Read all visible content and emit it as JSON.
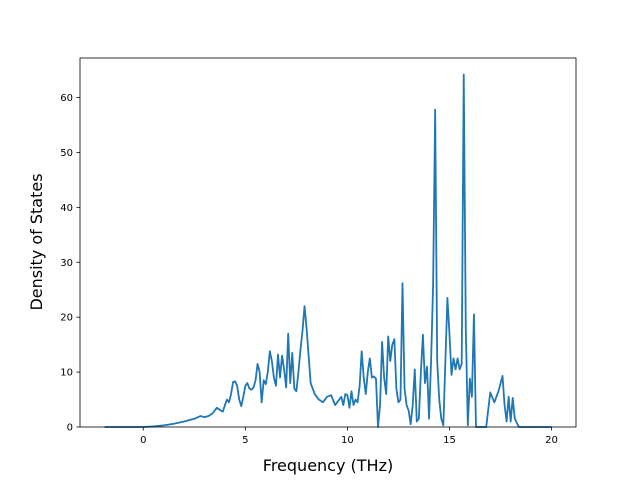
{
  "chart_data": {
    "type": "line",
    "title": "",
    "xlabel": "Frequency (THz)",
    "ylabel": "Density of States",
    "xlim": [
      -3.1,
      21.2
    ],
    "ylim": [
      0,
      67.2
    ],
    "xticks": [
      0,
      5,
      10,
      15,
      20
    ],
    "yticks": [
      0,
      10,
      20,
      30,
      40,
      50,
      60
    ],
    "grid": false,
    "line_color": "#1f77b4",
    "series": [
      {
        "x": [
          -1.9,
          0.0,
          0.5,
          1.0,
          1.5,
          2.0,
          2.5,
          2.8,
          3.0,
          3.2,
          3.4,
          3.6,
          3.8,
          3.9,
          4.0,
          4.1,
          4.2,
          4.3,
          4.4,
          4.5,
          4.6,
          4.7,
          4.8,
          4.9,
          5.0,
          5.1,
          5.2,
          5.3,
          5.4,
          5.5,
          5.6,
          5.7,
          5.8,
          5.9,
          6.0,
          6.1,
          6.2,
          6.3,
          6.4,
          6.5,
          6.6,
          6.7,
          6.8,
          6.9,
          7.0,
          7.1,
          7.2,
          7.3,
          7.4,
          7.5,
          7.6,
          7.7,
          7.8,
          7.9,
          8.0,
          8.2,
          8.4,
          8.6,
          8.8,
          9.0,
          9.2,
          9.4,
          9.5,
          9.6,
          9.7,
          9.8,
          9.9,
          10.0,
          10.1,
          10.2,
          10.3,
          10.4,
          10.5,
          10.6,
          10.7,
          10.8,
          10.9,
          11.0,
          11.1,
          11.2,
          11.3,
          11.4,
          11.5,
          11.6,
          11.7,
          11.8,
          11.9,
          12.0,
          12.1,
          12.2,
          12.3,
          12.4,
          12.5,
          12.6,
          12.7,
          12.8,
          12.9,
          13.0,
          13.1,
          13.2,
          13.3,
          13.4,
          13.5,
          13.6,
          13.7,
          13.8,
          13.9,
          14.0,
          14.1,
          14.2,
          14.3,
          14.4,
          14.5,
          14.6,
          14.7,
          14.8,
          14.9,
          15.0,
          15.1,
          15.2,
          15.3,
          15.4,
          15.5,
          15.6,
          15.7,
          15.8,
          15.9,
          16.0,
          16.1,
          16.2,
          16.3,
          16.4,
          16.5,
          16.6,
          16.8,
          17.0,
          17.2,
          17.4,
          17.6,
          17.7,
          17.8,
          17.9,
          18.0,
          18.1,
          18.2,
          18.4,
          18.6,
          19.0,
          20.0
        ],
        "y": [
          0.0,
          0.0,
          0.1,
          0.3,
          0.6,
          1.0,
          1.5,
          2.0,
          1.8,
          2.0,
          2.5,
          3.5,
          3.0,
          2.8,
          4.0,
          5.0,
          4.5,
          6.0,
          8.2,
          8.3,
          7.5,
          5.0,
          3.8,
          5.5,
          7.5,
          8.0,
          7.0,
          6.8,
          7.2,
          8.5,
          11.5,
          10.0,
          4.5,
          8.5,
          7.8,
          10.0,
          13.8,
          12.0,
          9.0,
          7.5,
          13.2,
          9.0,
          13.0,
          10.5,
          7.2,
          17.0,
          8.0,
          13.5,
          7.0,
          6.5,
          10.0,
          14.0,
          17.5,
          22.0,
          18.0,
          8.0,
          6.0,
          5.0,
          4.5,
          5.5,
          5.8,
          4.0,
          4.5,
          5.0,
          5.5,
          4.0,
          6.0,
          5.8,
          3.5,
          6.5,
          4.0,
          5.0,
          4.5,
          7.5,
          13.8,
          9.0,
          6.0,
          10.0,
          12.5,
          9.0,
          9.2,
          8.8,
          0.0,
          4.0,
          15.5,
          9.0,
          6.0,
          16.5,
          12.0,
          15.0,
          16.0,
          7.0,
          4.5,
          5.0,
          26.2,
          7.0,
          4.0,
          3.0,
          0.5,
          4.0,
          10.5,
          1.0,
          1.5,
          10.0,
          16.8,
          8.0,
          11.0,
          1.5,
          12.0,
          26.0,
          57.8,
          12.0,
          5.0,
          1.5,
          0.3,
          12.0,
          23.5,
          17.0,
          9.5,
          12.5,
          10.5,
          12.5,
          10.5,
          11.5,
          64.2,
          18.0,
          0.3,
          8.8,
          5.5,
          20.5,
          0.0,
          0.0,
          0.0,
          0.0,
          0.0,
          6.3,
          4.5,
          6.5,
          9.3,
          4.0,
          1.0,
          5.5,
          1.0,
          5.3,
          1.5,
          0.0,
          0.0,
          0.0,
          0.0
        ]
      }
    ]
  }
}
